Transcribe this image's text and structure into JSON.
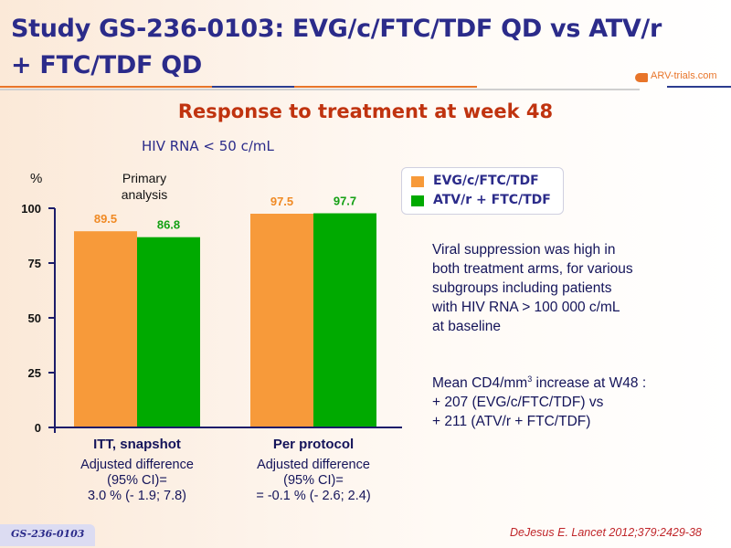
{
  "header": {
    "title_line1": "Study GS-236-0103: EVG/c/FTC/TDF QD vs ATV/r",
    "title_line2": "+ FTC/TDF QD",
    "logo_text": "ARV-trials.com"
  },
  "subtitle": "Response to treatment at week 48",
  "subhead": "HIV RNA < 50 c/mL",
  "chart_data": {
    "type": "bar",
    "title": "HIV RNA < 50 c/mL",
    "ylabel": "%",
    "ylim": [
      0,
      100
    ],
    "yticks": [
      0,
      25,
      50,
      75,
      100
    ],
    "ytick_labels": [
      "0",
      "25",
      "50",
      "75",
      "100"
    ],
    "categories": [
      "ITT, snapshot",
      "Per protocol"
    ],
    "annotation": "Primary analysis",
    "series": [
      {
        "name": "EVG/c/FTC/TDF",
        "color": "#f79a3a",
        "label_color": "#f08a24",
        "values": [
          89.5,
          97.5
        ],
        "labels": [
          "89.5",
          "97.5"
        ]
      },
      {
        "name": "ATV/r + FTC/TDF",
        "color": "#00aa00",
        "label_color": "#14a014",
        "values": [
          86.8,
          97.7
        ],
        "labels": [
          "86.8",
          "97.7"
        ]
      }
    ],
    "legend_position": "right",
    "grid": false
  },
  "primary_line1": "Primary",
  "primary_line2": "analysis",
  "adjusted": [
    {
      "l1": "Adjusted difference",
      "l2": "(95% CI)=",
      "l3": "3.0 % (- 1.9; 7.8)"
    },
    {
      "l1": "Adjusted difference",
      "l2": "(95% CI)=",
      "l3": "= -0.1 % (- 2.6; 2.4)"
    }
  ],
  "notes": {
    "viral": [
      "Viral suppression was high in",
      "both treatment arms, for various",
      "subgroups including patients",
      "with HIV RNA > 100 000 c/mL",
      "at baseline"
    ],
    "cd4_pre": "Mean CD4/mm",
    "cd4_sup": "3",
    "cd4_post": " increase at W48 :",
    "cd4_line2": "+ 207 (EVG/c/FTC/TDF) vs",
    "cd4_line3": "+ 211 (ATV/r + FTC/TDF)"
  },
  "footer": {
    "badge": "GS-236-0103",
    "citation": "DeJesus E. Lancet 2012;379:2429-38"
  }
}
